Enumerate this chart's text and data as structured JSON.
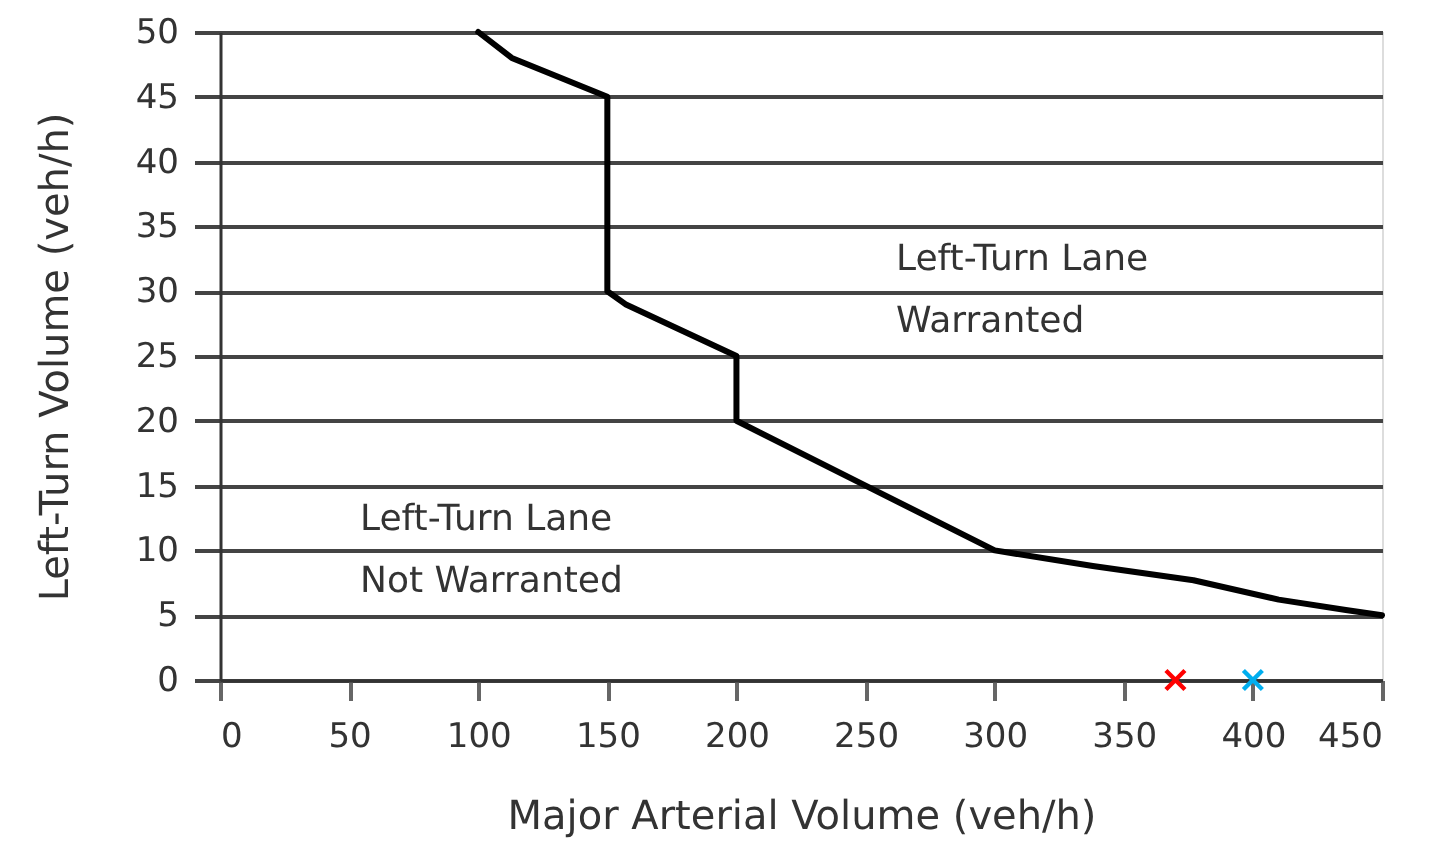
{
  "chart_data": {
    "type": "line",
    "xlabel": "Major Arterial Volume (veh/h)",
    "ylabel": "Left-Turn Volume (veh/h)",
    "xlim": [
      0,
      450
    ],
    "ylim": [
      0,
      50
    ],
    "xticks": [
      0,
      50,
      100,
      150,
      200,
      250,
      300,
      350,
      400,
      450
    ],
    "yticks": [
      0,
      5,
      10,
      15,
      20,
      25,
      30,
      35,
      40,
      45,
      50
    ],
    "grid": "y",
    "series": [
      {
        "color": "#000000",
        "x": [
          100,
          113,
          150,
          150,
          157,
          200,
          200,
          250,
          300,
          338,
          377,
          410,
          436,
          450
        ],
        "values": [
          50,
          48,
          45,
          30,
          29,
          25,
          20,
          15,
          10,
          8.8,
          7.7,
          6.2,
          5.4,
          5
        ]
      },
      {
        "type": "scatter",
        "color": "#ff0000",
        "marker": "cross",
        "x": [
          370
        ],
        "values": [
          0
        ]
      },
      {
        "type": "scatter",
        "color": "#00aeef",
        "marker": "cross",
        "x": [
          400
        ],
        "values": [
          0
        ]
      }
    ],
    "annotations": [
      "Left-Turn Lane\nWarranted",
      "Left-Turn Lane\nNot Warranted"
    ]
  }
}
